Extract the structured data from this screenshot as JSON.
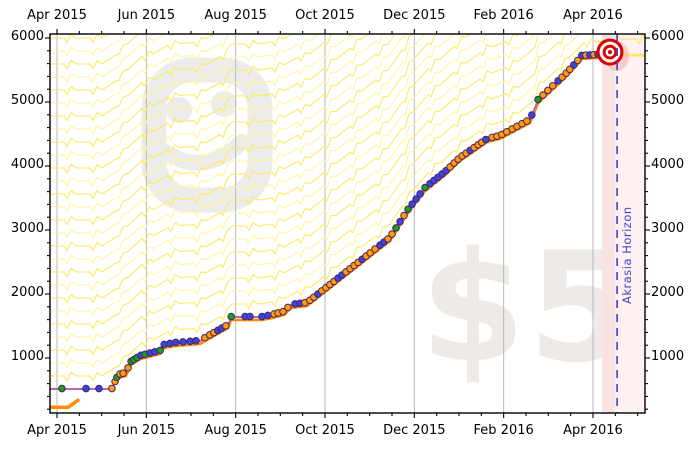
{
  "chart_data": {
    "type": "line",
    "title": "",
    "x_axis": {
      "unit": "months since 2015-04-01",
      "tick_labels": [
        "Apr 2015",
        "Jun 2015",
        "Aug 2015",
        "Oct 2015",
        "Dec 2015",
        "Feb 2016",
        "Apr 2016"
      ],
      "tick_positions_months": [
        0,
        2,
        4,
        6,
        8,
        10,
        12
      ],
      "minor_tick_step_months": 0.5,
      "xlim_months": [
        -0.18,
        13.16
      ],
      "gridlines_vertical": true,
      "labels_on_top_and_bottom": true
    },
    "y_axis": {
      "tick_labels": [
        "1000",
        "2000",
        "3000",
        "4000",
        "5000",
        "6000"
      ],
      "tick_values": [
        1000,
        2000,
        3000,
        4000,
        5000,
        6000
      ],
      "minor_tick_step": 200,
      "ylim": [
        140,
        6070
      ],
      "labels_on_left_and_right": true
    },
    "road_path": {
      "note": "cumulative Beeminder yellow-brick-road / datapath, months vs value",
      "data_line_from_month": -0.18,
      "data_line_to_month": 12.31,
      "anchors_month_value": [
        [
          -0.45,
          60
        ],
        [
          -0.18,
          515
        ],
        [
          1.23,
          515
        ],
        [
          1.37,
          735
        ],
        [
          1.54,
          765
        ],
        [
          1.66,
          940
        ],
        [
          1.86,
          1030
        ],
        [
          2.31,
          1110
        ],
        [
          2.4,
          1205
        ],
        [
          2.66,
          1235
        ],
        [
          3.2,
          1265
        ],
        [
          3.83,
          1515
        ],
        [
          3.9,
          1640
        ],
        [
          4.59,
          1640
        ],
        [
          4.81,
          1670
        ],
        [
          5.08,
          1720
        ],
        [
          5.24,
          1830
        ],
        [
          5.6,
          1860
        ],
        [
          7.45,
          2875
        ],
        [
          7.86,
          3315
        ],
        [
          8.24,
          3655
        ],
        [
          8.69,
          3905
        ],
        [
          9.02,
          4125
        ],
        [
          9.63,
          4420
        ],
        [
          9.92,
          4470
        ],
        [
          10.59,
          4720
        ],
        [
          10.77,
          5030
        ],
        [
          11.37,
          5420
        ],
        [
          11.64,
          5625
        ],
        [
          11.75,
          5720
        ],
        [
          12.09,
          5735
        ],
        [
          12.31,
          5780
        ],
        [
          13.16,
          5780
        ]
      ]
    },
    "road_start_edge_month_value": [
      [
        -0.16,
        230
      ],
      [
        0.25,
        230
      ],
      [
        0.47,
        340
      ]
    ],
    "datapoints": {
      "note": "dots lie on road_path (values interpolated); color o=orange b=blue g=green",
      "points_month_color": [
        [
          0.11,
          "g"
        ],
        [
          0.65,
          "b"
        ],
        [
          0.94,
          "b"
        ],
        [
          1.23,
          "o"
        ],
        [
          1.3,
          "o"
        ],
        [
          1.34,
          "g"
        ],
        [
          1.41,
          "o"
        ],
        [
          1.48,
          "o"
        ],
        [
          1.59,
          "o"
        ],
        [
          1.66,
          "g"
        ],
        [
          1.72,
          "g"
        ],
        [
          1.79,
          "g"
        ],
        [
          1.88,
          "b"
        ],
        [
          1.97,
          "g"
        ],
        [
          2.08,
          "b"
        ],
        [
          2.19,
          "b"
        ],
        [
          2.31,
          "g"
        ],
        [
          2.4,
          "b"
        ],
        [
          2.53,
          "b"
        ],
        [
          2.66,
          "b"
        ],
        [
          2.82,
          "b"
        ],
        [
          2.98,
          "b"
        ],
        [
          3.11,
          "b"
        ],
        [
          3.31,
          "o"
        ],
        [
          3.42,
          "o"
        ],
        [
          3.51,
          "o"
        ],
        [
          3.6,
          "b"
        ],
        [
          3.69,
          "b"
        ],
        [
          3.78,
          "o"
        ],
        [
          3.9,
          "g"
        ],
        [
          4.21,
          "b"
        ],
        [
          4.32,
          "b"
        ],
        [
          4.59,
          "b"
        ],
        [
          4.72,
          "b"
        ],
        [
          4.86,
          "o"
        ],
        [
          4.95,
          "o"
        ],
        [
          5.06,
          "o"
        ],
        [
          5.17,
          "o"
        ],
        [
          5.33,
          "b"
        ],
        [
          5.44,
          "b"
        ],
        [
          5.55,
          "o"
        ],
        [
          5.66,
          "o"
        ],
        [
          5.75,
          "o"
        ],
        [
          5.84,
          "b"
        ],
        [
          5.93,
          "o"
        ],
        [
          6.02,
          "o"
        ],
        [
          6.11,
          "o"
        ],
        [
          6.2,
          "o"
        ],
        [
          6.29,
          "b"
        ],
        [
          6.38,
          "b"
        ],
        [
          6.47,
          "o"
        ],
        [
          6.56,
          "o"
        ],
        [
          6.65,
          "o"
        ],
        [
          6.74,
          "o"
        ],
        [
          6.83,
          "b"
        ],
        [
          6.92,
          "o"
        ],
        [
          7.01,
          "o"
        ],
        [
          7.12,
          "o"
        ],
        [
          7.23,
          "b"
        ],
        [
          7.32,
          "b"
        ],
        [
          7.41,
          "o"
        ],
        [
          7.5,
          "o"
        ],
        [
          7.59,
          "g"
        ],
        [
          7.68,
          "b"
        ],
        [
          7.77,
          "o"
        ],
        [
          7.86,
          "g"
        ],
        [
          7.95,
          "b"
        ],
        [
          8.04,
          "b"
        ],
        [
          8.13,
          "b"
        ],
        [
          8.24,
          "g"
        ],
        [
          8.35,
          "b"
        ],
        [
          8.44,
          "b"
        ],
        [
          8.53,
          "b"
        ],
        [
          8.62,
          "b"
        ],
        [
          8.71,
          "b"
        ],
        [
          8.8,
          "o"
        ],
        [
          8.89,
          "o"
        ],
        [
          8.98,
          "o"
        ],
        [
          9.07,
          "o"
        ],
        [
          9.16,
          "o"
        ],
        [
          9.25,
          "b"
        ],
        [
          9.34,
          "o"
        ],
        [
          9.43,
          "o"
        ],
        [
          9.51,
          "o"
        ],
        [
          9.6,
          "b"
        ],
        [
          9.74,
          "o"
        ],
        [
          9.85,
          "o"
        ],
        [
          9.96,
          "o"
        ],
        [
          10.07,
          "o"
        ],
        [
          10.19,
          "o"
        ],
        [
          10.3,
          "o"
        ],
        [
          10.41,
          "o"
        ],
        [
          10.52,
          "o"
        ],
        [
          10.63,
          "b"
        ],
        [
          10.77,
          "g"
        ],
        [
          10.88,
          "o"
        ],
        [
          10.99,
          "o"
        ],
        [
          11.1,
          "o"
        ],
        [
          11.22,
          "b"
        ],
        [
          11.31,
          "o"
        ],
        [
          11.4,
          "o"
        ],
        [
          11.48,
          "o"
        ],
        [
          11.57,
          "b"
        ],
        [
          11.66,
          "o"
        ],
        [
          11.75,
          "b"
        ],
        [
          11.84,
          "o"
        ],
        [
          11.93,
          "b"
        ],
        [
          12.02,
          "o"
        ],
        [
          12.11,
          "b"
        ],
        [
          12.2,
          "o"
        ],
        [
          12.29,
          "b"
        ]
      ]
    },
    "goal_bullseye": {
      "month": 12.38,
      "value": 5780
    },
    "akrasia_horizon": {
      "month": 12.54,
      "label": "Akrasia Horizon"
    },
    "post_goal_band": {
      "from_month": 12.2,
      "to_month": 13.16
    },
    "guidelines": {
      "style": "yellow brick road zigzag lanes above road",
      "count": 32
    },
    "watermarks": {
      "pledge_amount": "$5",
      "logo": "beeminder-logo"
    }
  },
  "colors": {
    "background": "#ffffff",
    "guideline_yellow_bright": "#ffe95e",
    "guideline_yellow_pale": "#fff59e",
    "road_orange": "#ff8c00",
    "data_line_purple": "#b06cb0",
    "dot_orange": "#ff9d00",
    "dot_blue": "#3a46d6",
    "dot_green": "#14a314",
    "dot_outline": "#4a2070",
    "horizon_blue": "#3c3ccf",
    "post_goal_band_pink": "#fceded",
    "post_goal_strip_pink": "#f8dcdc",
    "bullseye_red": "#dd0000",
    "bullseye_halo": "#f2b9b9",
    "gridline_gray": "#b8b8b8",
    "watermark_gray": "#ececea",
    "axis_black": "#000000"
  }
}
